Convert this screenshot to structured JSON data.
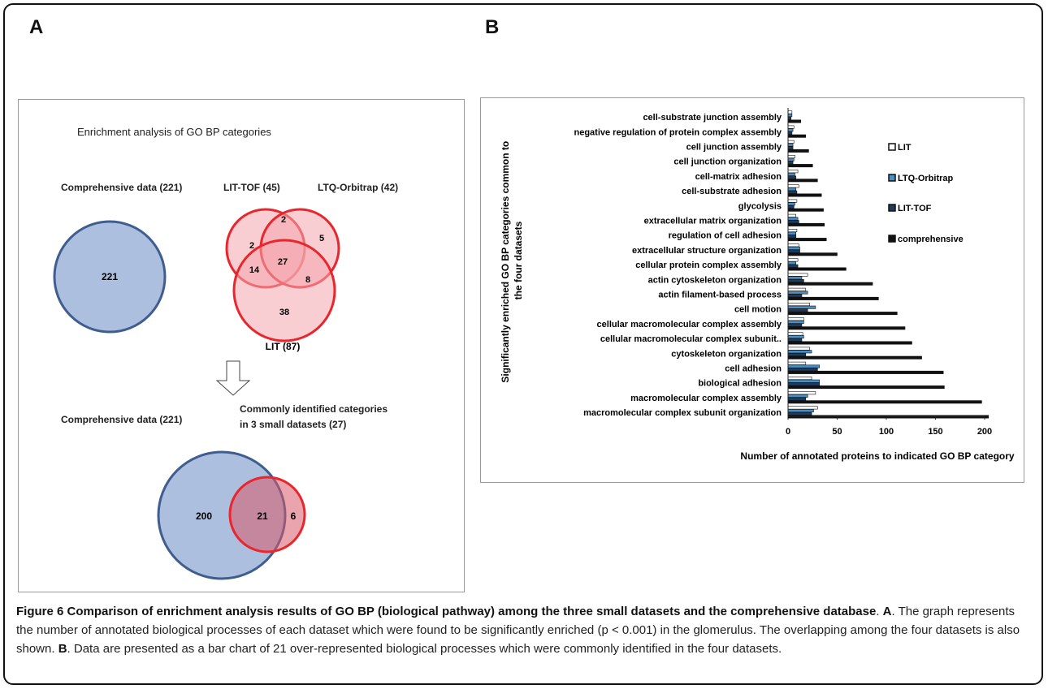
{
  "labels": {
    "panel_a": "A",
    "panel_b": "B"
  },
  "venn": {
    "title": "Enrichment analysis of GO BP categories",
    "comprehensive_label": "Comprehensive data (221)",
    "comprehensive_value": "221",
    "lit_tof_label": "LIT-TOF (45)",
    "ltq_label": "LTQ-Orbitrap (42)",
    "lit_label": "LIT (87)",
    "region_values": {
      "tof_only": "2",
      "tof_ltq": "2",
      "ltq_only": "5",
      "tof_lit": "14",
      "all_three": "27",
      "ltq_lit": "8",
      "lit_only": "38"
    },
    "bottom_left_label": "Comprehensive data (221)",
    "bottom_right_label_1": "Commonly identified categories",
    "bottom_right_label_2": "in 3 small datasets (27)",
    "bottom_values": {
      "comprehensive_only": "200",
      "overlap": "21",
      "small_only": "6"
    },
    "colors": {
      "blue_fill": "#a8bcdc",
      "blue_stroke": "#3f5d8e",
      "red_fill": "#f4a6ad",
      "red_stroke": "#e8262c"
    }
  },
  "chart_data": {
    "type": "bar",
    "orientation": "horizontal",
    "categories": [
      "cell-substrate junction assembly",
      "negative regulation of protein complex assembly",
      "cell junction assembly",
      "cell junction organization",
      "cell-matrix adhesion",
      "cell-substrate adhesion",
      "glycolysis",
      "extracellular matrix organization",
      "regulation of cell adhesion",
      "extracellular structure organization",
      "cellular protein complex assembly",
      "actin cytoskeleton organization",
      "actin filament-based process",
      "cell motion",
      "cellular macromolecular complex assembly",
      "cellular macromolecular complex subunit..",
      "cytoskeleton organization",
      "cell adhesion",
      "biological adhesion",
      "macromolecular complex assembly",
      "macromolecular complex subunit organization"
    ],
    "series": [
      {
        "name": "LIT",
        "color": "#ffffff",
        "values": [
          4,
          6,
          6,
          7,
          10,
          11,
          9,
          8,
          9,
          11,
          10,
          20,
          18,
          22,
          16,
          15,
          22,
          18,
          24,
          28,
          30
        ]
      },
      {
        "name": "LTQ-Orbitrap",
        "color": "#4a8fc3",
        "values": [
          4,
          5,
          5,
          6,
          7,
          8,
          7,
          10,
          8,
          12,
          8,
          14,
          20,
          28,
          16,
          16,
          24,
          32,
          32,
          20,
          26
        ]
      },
      {
        "name": "LIT-TOF",
        "color": "#1f3a5a",
        "values": [
          3,
          4,
          5,
          5,
          8,
          9,
          6,
          11,
          8,
          12,
          10,
          16,
          14,
          20,
          14,
          14,
          18,
          30,
          32,
          18,
          24
        ]
      },
      {
        "name": "comprehensive",
        "color": "#111111",
        "values": [
          13,
          18,
          21,
          25,
          30,
          34,
          36,
          37,
          39,
          50,
          59,
          86,
          92,
          111,
          119,
          126,
          136,
          158,
          159,
          197,
          204
        ]
      }
    ],
    "xlabel": "Number of annotated proteins to indicated GO BP category",
    "ylabel": "Significantly enriched GO BP categories common to the four datasets",
    "xlim": [
      0,
      200
    ],
    "xticks": [
      "0",
      "50",
      "100",
      "150",
      "200"
    ],
    "legend_position": "right"
  },
  "caption": {
    "title": "Figure 6 Comparison of enrichment analysis results of GO BP (biological pathway) among the three small datasets and the comprehensive database",
    "part_a_letter": "A",
    "part_a_text": ". The graph represents the number of annotated biological processes of each dataset which were found to be significantly enriched (p < 0.001) in the glomerulus. The overlapping among the four datasets is also shown. ",
    "part_b_letter": "B",
    "part_b_text": ". Data are presented as a bar chart of 21 over-represented biological processes which were commonly identified in the four datasets."
  }
}
